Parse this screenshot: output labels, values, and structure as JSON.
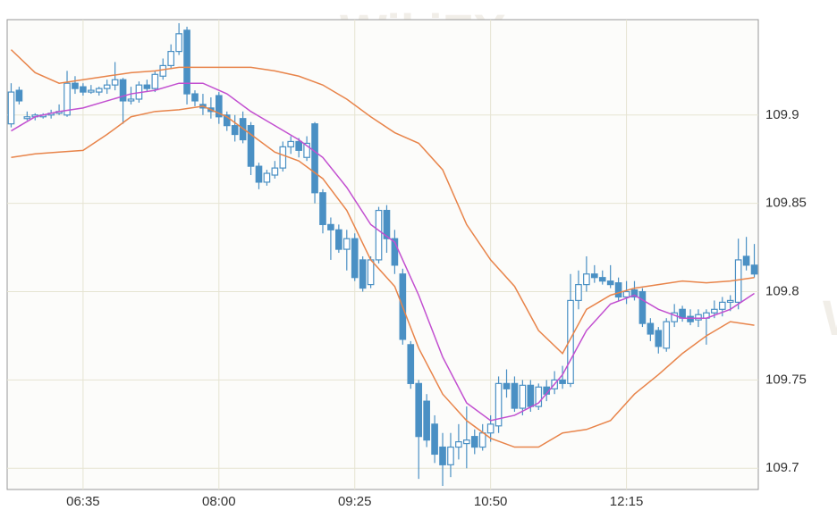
{
  "chart_data": {
    "type": "candlestick",
    "watermark": "WikiFX",
    "categories": [
      "05:50",
      "05:55",
      "06:00",
      "06:05",
      "06:10",
      "06:15",
      "06:20",
      "06:25",
      "06:30",
      "06:35",
      "06:40",
      "06:45",
      "06:50",
      "06:55",
      "07:00",
      "07:05",
      "07:10",
      "07:15",
      "07:20",
      "07:25",
      "07:30",
      "07:35",
      "07:40",
      "07:45",
      "07:50",
      "07:55",
      "08:00",
      "08:05",
      "08:10",
      "08:15",
      "08:20",
      "08:25",
      "08:30",
      "08:35",
      "08:40",
      "08:45",
      "08:50",
      "08:55",
      "09:00",
      "09:05",
      "09:10",
      "09:15",
      "09:20",
      "09:25",
      "09:30",
      "09:35",
      "09:40",
      "09:45",
      "09:50",
      "09:55",
      "10:00",
      "10:05",
      "10:10",
      "10:15",
      "10:20",
      "10:25",
      "10:30",
      "10:35",
      "10:40",
      "10:45",
      "10:50",
      "10:55",
      "11:00",
      "11:05",
      "11:10",
      "11:15",
      "11:20",
      "11:25",
      "11:30",
      "11:35",
      "11:40",
      "11:45",
      "11:50",
      "11:55",
      "12:00",
      "12:05",
      "12:10",
      "12:15",
      "12:20",
      "12:25",
      "12:30",
      "12:35",
      "12:40",
      "12:45",
      "12:50",
      "12:55",
      "13:00",
      "13:05",
      "13:10",
      "13:15",
      "13:20",
      "13:25",
      "13:30",
      "13:35"
    ],
    "open": [
      109.895,
      109.914,
      109.898,
      109.899,
      109.899,
      109.9,
      109.901,
      109.9,
      109.918,
      109.916,
      109.913,
      109.913,
      109.915,
      109.917,
      109.92,
      109.908,
      109.909,
      109.917,
      109.915,
      109.922,
      109.928,
      109.936,
      109.948,
      109.912,
      109.906,
      109.904,
      109.911,
      109.9,
      109.894,
      109.898,
      109.894,
      109.871,
      109.862,
      109.866,
      109.87,
      109.882,
      109.885,
      109.876,
      109.895,
      109.856,
      109.838,
      109.835,
      109.824,
      109.83,
      109.818,
      109.804,
      109.818,
      109.846,
      109.83,
      109.81,
      109.77,
      109.748,
      109.738,
      109.725,
      109.712,
      109.702,
      109.712,
      109.714,
      109.718,
      109.712,
      109.72,
      109.724,
      109.748,
      109.748,
      109.734,
      109.747,
      109.735,
      109.746,
      109.745,
      109.75,
      109.748,
      109.795,
      109.804,
      109.81,
      109.808,
      109.806,
      109.805,
      109.797,
      109.801,
      109.8,
      109.782,
      109.778,
      109.768,
      109.783,
      109.79,
      109.786,
      109.784,
      109.785,
      109.788,
      109.79,
      109.794,
      109.794,
      109.82,
      109.815
    ],
    "high": [
      109.918,
      109.916,
      109.902,
      109.901,
      109.901,
      109.903,
      109.906,
      109.925,
      109.922,
      109.918,
      109.917,
      109.916,
      109.92,
      109.93,
      109.921,
      109.916,
      109.919,
      109.92,
      109.925,
      109.932,
      109.94,
      109.952,
      109.95,
      109.914,
      109.912,
      109.91,
      109.913,
      109.902,
      109.9,
      109.902,
      109.896,
      109.873,
      109.869,
      109.874,
      109.885,
      109.888,
      109.887,
      109.888,
      109.896,
      109.858,
      109.842,
      109.838,
      109.835,
      109.833,
      109.82,
      109.82,
      109.848,
      109.849,
      109.835,
      109.813,
      109.772,
      109.75,
      109.742,
      109.73,
      109.72,
      109.72,
      109.725,
      109.735,
      109.722,
      109.725,
      109.73,
      109.752,
      109.756,
      109.752,
      109.75,
      109.75,
      109.748,
      109.75,
      109.755,
      109.758,
      109.81,
      109.812,
      109.82,
      109.815,
      109.812,
      109.815,
      109.808,
      109.806,
      109.806,
      109.802,
      109.785,
      109.78,
      109.785,
      109.793,
      109.792,
      109.79,
      109.79,
      109.79,
      109.795,
      109.797,
      109.798,
      109.83,
      109.831,
      109.827
    ],
    "low": [
      109.893,
      109.906,
      109.897,
      109.897,
      109.898,
      109.898,
      109.9,
      109.899,
      109.912,
      109.911,
      109.912,
      109.911,
      109.912,
      109.914,
      109.895,
      109.906,
      109.907,
      109.913,
      109.913,
      109.92,
      109.926,
      109.934,
      109.906,
      109.905,
      109.9,
      109.898,
      109.895,
      109.891,
      109.885,
      109.884,
      109.866,
      109.858,
      109.86,
      109.864,
      109.868,
      109.878,
      109.876,
      109.874,
      109.85,
      109.833,
      109.818,
      109.822,
      109.812,
      109.806,
      109.8,
      109.802,
      109.816,
      109.822,
      109.81,
      109.77,
      109.745,
      109.694,
      109.712,
      109.703,
      109.69,
      109.695,
      109.705,
      109.7,
      109.708,
      109.71,
      109.715,
      109.72,
      109.74,
      109.732,
      109.73,
      109.732,
      109.733,
      109.738,
      109.742,
      109.745,
      109.746,
      109.79,
      109.8,
      109.805,
      109.804,
      109.802,
      109.795,
      109.793,
      109.795,
      109.78,
      109.772,
      109.765,
      109.766,
      109.78,
      109.783,
      109.781,
      109.78,
      109.77,
      109.785,
      109.786,
      109.789,
      109.79,
      109.812,
      109.808
    ],
    "close": [
      109.913,
      109.908,
      109.899,
      109.9,
      109.9,
      109.901,
      109.902,
      109.918,
      109.915,
      109.913,
      109.914,
      109.915,
      109.917,
      109.92,
      109.908,
      109.909,
      109.917,
      109.915,
      109.923,
      109.928,
      109.936,
      109.946,
      109.912,
      109.908,
      109.904,
      109.902,
      109.899,
      109.894,
      109.889,
      109.886,
      109.871,
      109.862,
      109.867,
      109.87,
      109.882,
      109.885,
      109.88,
      109.884,
      109.856,
      109.838,
      109.835,
      109.824,
      109.83,
      109.808,
      109.802,
      109.818,
      109.846,
      109.83,
      109.815,
      109.773,
      109.748,
      109.718,
      109.716,
      109.708,
      109.702,
      109.712,
      109.715,
      109.716,
      109.712,
      109.72,
      109.725,
      109.748,
      109.745,
      109.734,
      109.747,
      109.735,
      109.746,
      109.742,
      109.75,
      109.748,
      109.795,
      109.804,
      109.81,
      109.808,
      109.806,
      109.804,
      109.797,
      109.8,
      109.797,
      109.782,
      109.776,
      109.769,
      109.783,
      109.788,
      109.785,
      109.783,
      109.787,
      109.788,
      109.79,
      109.794,
      109.795,
      109.818,
      109.815,
      109.81
    ],
    "up_color": "#4a90c4",
    "down_color": "#4a90c4",
    "series": [
      {
        "color": "#e8844a",
        "x": [
          "05:50",
          "06:05",
          "06:20",
          "06:35",
          "06:50",
          "07:05",
          "07:20",
          "07:35",
          "07:50",
          "08:05",
          "08:20",
          "08:35",
          "08:50",
          "09:05",
          "09:20",
          "09:35",
          "09:50",
          "10:05",
          "10:20",
          "10:35",
          "10:50",
          "11:05",
          "11:20",
          "11:35",
          "11:50",
          "12:05",
          "12:20",
          "12:35",
          "12:50",
          "13:05",
          "13:20",
          "13:35"
        ],
        "values": [
          109.937,
          109.924,
          109.918,
          109.92,
          109.922,
          109.924,
          109.925,
          109.927,
          109.927,
          109.927,
          109.927,
          109.925,
          109.922,
          109.917,
          109.909,
          109.899,
          109.89,
          109.884,
          109.869,
          109.838,
          109.818,
          109.803,
          109.778,
          109.765,
          109.79,
          109.798,
          109.802,
          109.804,
          109.806,
          109.805,
          109.806,
          109.808
        ]
      },
      {
        "color": "#c24fd0",
        "x": [
          "05:50",
          "06:05",
          "06:20",
          "06:35",
          "06:50",
          "07:05",
          "07:20",
          "07:35",
          "07:50",
          "08:05",
          "08:20",
          "08:35",
          "08:50",
          "09:05",
          "09:20",
          "09:35",
          "09:50",
          "10:05",
          "10:20",
          "10:35",
          "10:50",
          "11:05",
          "11:20",
          "11:35",
          "11:50",
          "12:05",
          "12:20",
          "12:35",
          "12:50",
          "13:05",
          "13:20",
          "13:35"
        ],
        "values": [
          109.891,
          109.899,
          109.902,
          109.904,
          109.908,
          109.912,
          109.914,
          109.918,
          109.918,
          109.912,
          109.902,
          109.894,
          109.886,
          109.876,
          109.859,
          109.838,
          109.828,
          109.798,
          109.763,
          109.737,
          109.727,
          109.73,
          109.737,
          109.753,
          109.778,
          109.793,
          109.798,
          109.79,
          109.785,
          109.785,
          109.79,
          109.799
        ]
      },
      {
        "color": "#e8844a",
        "x": [
          "05:50",
          "06:05",
          "06:20",
          "06:35",
          "06:50",
          "07:05",
          "07:20",
          "07:35",
          "07:50",
          "08:05",
          "08:20",
          "08:35",
          "08:50",
          "09:05",
          "09:20",
          "09:35",
          "09:50",
          "10:05",
          "10:20",
          "10:35",
          "10:50",
          "11:05",
          "11:20",
          "11:35",
          "11:50",
          "12:05",
          "12:20",
          "12:35",
          "12:50",
          "13:05",
          "13:20",
          "13:35"
        ],
        "values": [
          109.876,
          109.878,
          109.879,
          109.88,
          109.889,
          109.899,
          109.902,
          109.903,
          109.905,
          109.899,
          109.889,
          109.879,
          109.874,
          109.864,
          109.846,
          109.818,
          109.803,
          109.768,
          109.742,
          109.727,
          109.717,
          109.712,
          109.712,
          109.72,
          109.722,
          109.727,
          109.742,
          109.753,
          109.765,
          109.775,
          109.783,
          109.781
        ]
      }
    ],
    "ylim": [
      109.688,
      109.954
    ],
    "yticks": [
      109.7,
      109.75,
      109.8,
      109.85,
      109.9
    ],
    "xticks": [
      "06:35",
      "08:00",
      "09:25",
      "10:50",
      "12:15"
    ],
    "grid": true
  }
}
